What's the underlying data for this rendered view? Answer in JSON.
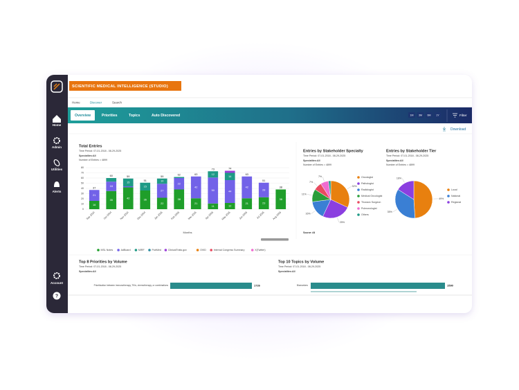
{
  "app": {
    "brand": "SCIENTIFIC MEDICAL INTELLIGENCE (STUDIO)",
    "nav": [
      "Home",
      "Discover",
      "Search"
    ],
    "tabs": [
      "Overview",
      "Priorities",
      "Topics",
      "Auto Discovered"
    ],
    "ranges": [
      "1M",
      "3M",
      "6M",
      "1Y"
    ],
    "filter": "Filter",
    "download": "Download"
  },
  "sidebar": {
    "items": [
      "Home",
      "Admin",
      "Utilities",
      "Alerts"
    ],
    "account": "Account",
    "help": "?"
  },
  "chart_data": [
    {
      "type": "stacked_bar",
      "title": "Total Entries",
      "time_period": "Time Period: 07-01-2018 - 08-29-2025",
      "specialties": "Specialties:All",
      "entries": "Number of Entries = 4899",
      "xlabel": "Months",
      "categories": [
        "Sep 2024",
        "Oct 2024",
        "Nov 2024",
        "Dec 2024",
        "Jan 2025",
        "Feb 2025",
        "Mar 2025",
        "Apr 2025",
        "May 2025",
        "Jun 2025",
        "Jul 2025",
        "Aug 2025"
      ],
      "series": [
        {
          "name": "MSL Notes",
          "color": "#1f9e2a",
          "values": [
            16,
            35,
            42,
            36,
            22,
            38,
            21,
            11,
            12,
            21,
            23,
            38
          ]
        },
        {
          "name": "AdBoard",
          "color": "#7262e8",
          "values": [
            21,
            18,
            2,
            0,
            27,
            22,
            42,
            50,
            44,
            42,
            28,
            0
          ]
        },
        {
          "name": "MIRF",
          "color": "#1f9a86",
          "values": [
            0,
            7,
            15,
            15,
            10,
            2,
            0,
            12,
            14,
            0,
            0,
            0
          ]
        },
        {
          "name": "PubMed",
          "color": "#2a8ca0",
          "values": [
            0,
            0,
            0,
            0,
            0,
            0,
            0,
            0,
            0,
            0,
            0,
            0
          ]
        },
        {
          "name": "ClinicalTrials.gov",
          "color": "#9b3fd9",
          "values": [
            0,
            0,
            0,
            0,
            0,
            0,
            0,
            0,
            4,
            0,
            0,
            0
          ]
        },
        {
          "name": "OVID",
          "color": "#e8800f",
          "values": [
            0,
            0,
            0,
            0,
            0,
            0,
            0,
            0,
            0,
            0,
            0,
            0
          ]
        },
        {
          "name": "Internal Congress Summary",
          "color": "#e84a5f",
          "values": [
            0,
            0,
            0,
            0,
            0,
            0,
            0,
            0,
            0,
            0,
            0,
            0
          ]
        },
        {
          "name": "X(Twitter)",
          "color": "#f06bd0",
          "values": [
            0,
            0,
            0,
            0,
            0,
            0,
            0,
            0,
            0,
            0,
            0,
            0
          ]
        }
      ],
      "total_labels": [
        37,
        60,
        59,
        51,
        59,
        62,
        63,
        73,
        74,
        63,
        51,
        38
      ],
      "ylim": [
        0,
        80
      ],
      "yticks": [
        0,
        10,
        20,
        30,
        40,
        50,
        60,
        70,
        80
      ],
      "grid": true
    },
    {
      "type": "pie",
      "title": "Entries by Stakeholder Specialty",
      "time_period": "Time Period: 07-01-2018 - 08-29-2025",
      "specialties": "Specialties:All",
      "entries": "Number of Entries = 4899",
      "source": "Source: All",
      "categories": [
        "Oncologist",
        "Pathologist",
        "Radiologist",
        "Medical Oncologist",
        "Thoracic Surgeon",
        "Pulmonologist",
        "Others"
      ],
      "values": [
        32,
        25,
        16,
        11,
        7,
        7,
        2
      ],
      "value_labels": [
        "32%",
        "25%",
        "16%",
        "11%",
        "7%",
        "7%",
        null
      ],
      "colors": [
        "#e8800f",
        "#8b3fe0",
        "#3a7fd4",
        "#2a9d3a",
        "#e84a5f",
        "#f06bd0",
        "#1f9a86"
      ]
    },
    {
      "type": "pie",
      "title": "Entries by Stakeholder Tier",
      "time_period": "Time Period: 07-01-2018 - 08-29-2025",
      "specialties": "Specialties:All",
      "entries": "Number of Entries = 4899",
      "source": "Source: All",
      "categories": [
        "Local",
        "National",
        "Regional"
      ],
      "values": [
        49,
        35,
        16
      ],
      "value_labels": [
        "49%",
        "35%",
        "16%"
      ],
      "colors": [
        "#e8800f",
        "#3a7fd4",
        "#8b3fe0"
      ]
    },
    {
      "type": "hbar",
      "title": "Top 8 Priorities by Volume",
      "time_period": "Time Period: 07-01-2018 - 08-29-2025",
      "specialties": "Specialties:All",
      "categories": [
        "Prioritization between immunotherapy, TKIs, chemotherapy, or combinations"
      ],
      "values": [
        1726
      ],
      "color": "#2a8c8c"
    },
    {
      "type": "hbar",
      "title": "Top 10 Topics by Volume",
      "time_period": "Time Period: 07-01-2018 - 08-29-2025",
      "specialties": "Specialties:All",
      "categories": [
        "Biomarkers"
      ],
      "values": [
        1590
      ],
      "color": "#2a8c8c"
    }
  ]
}
